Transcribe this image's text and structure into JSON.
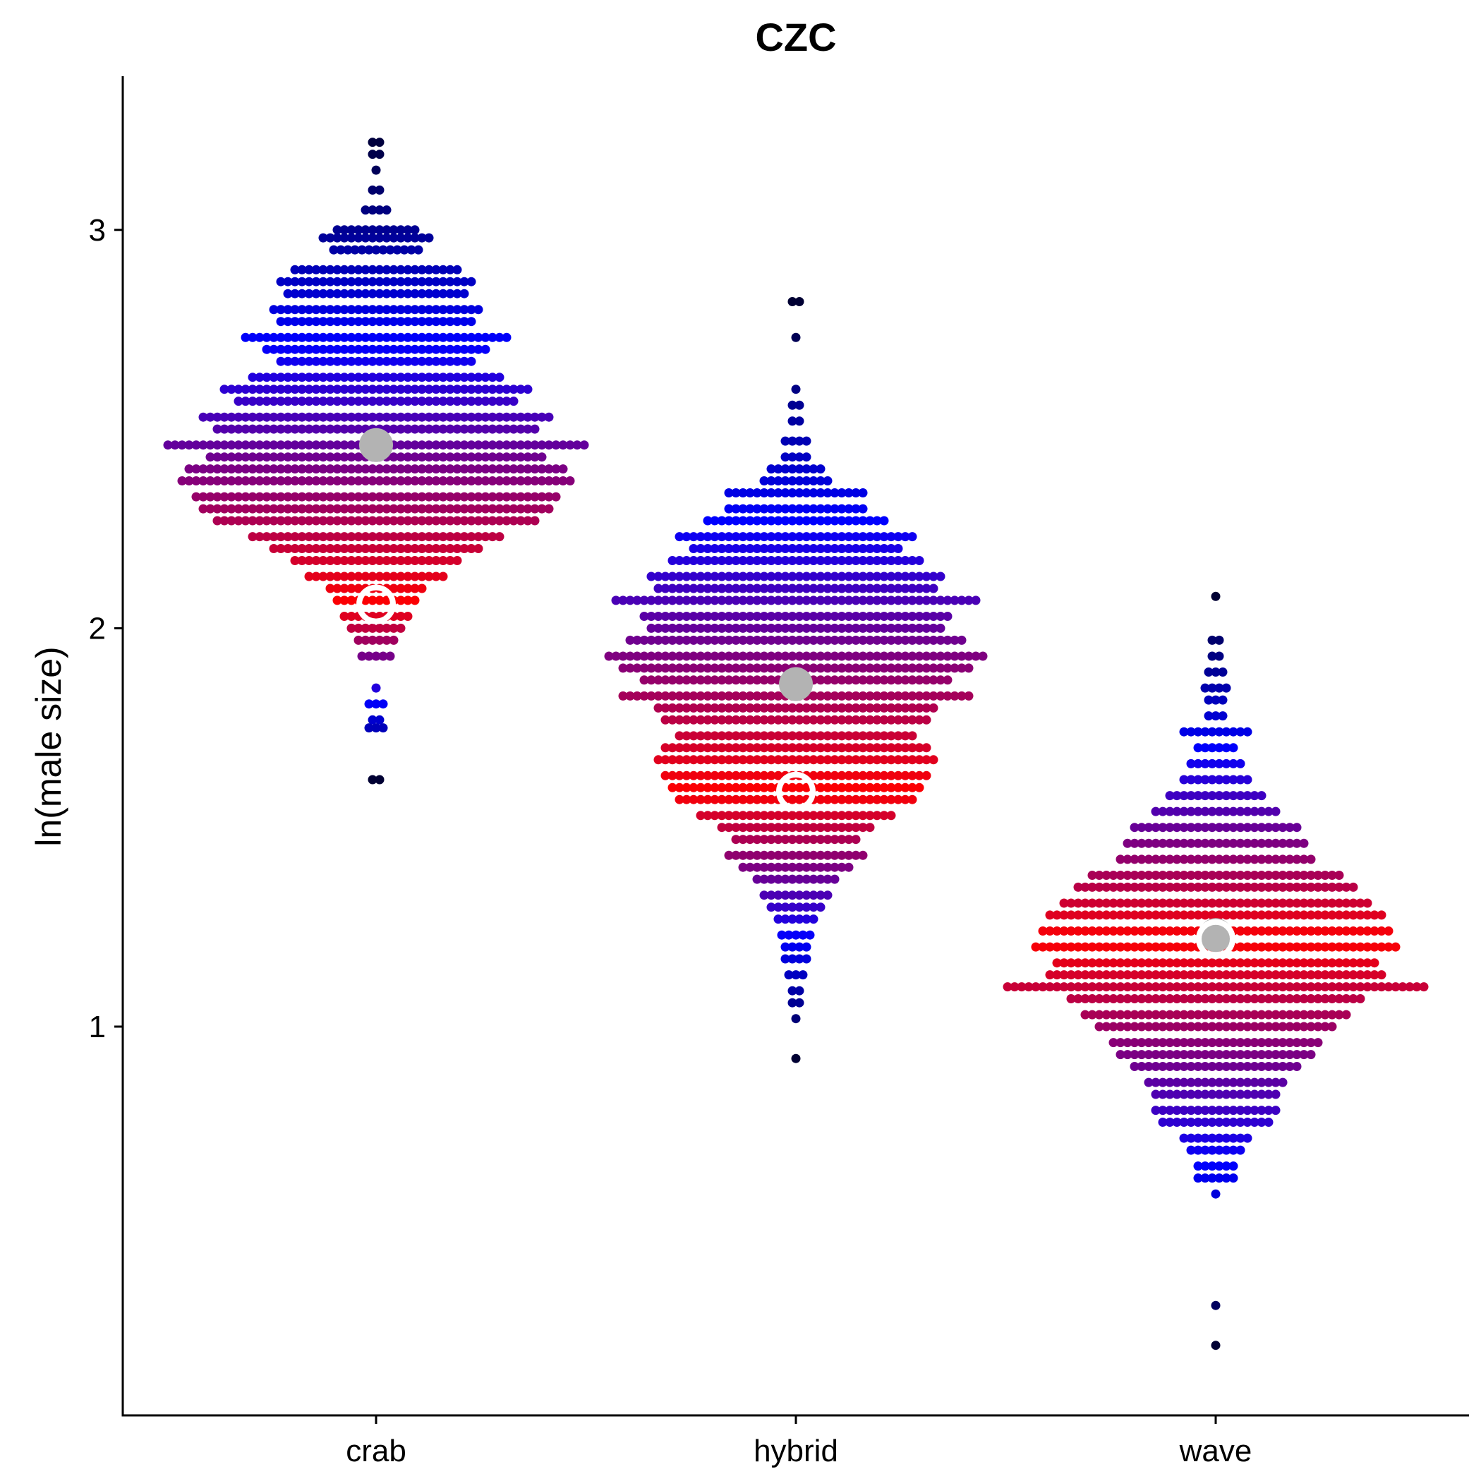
{
  "chart_data": {
    "type": "scatter",
    "subtype": "beeswarm",
    "title": "CZC",
    "xlabel": "",
    "ylabel": "ln(male size)",
    "categories": [
      "crab",
      "hybrid",
      "wave"
    ],
    "y_ticks": [
      1,
      2,
      3
    ],
    "ylim": [
      0.18,
      3.4
    ],
    "grid": false,
    "legend": "none",
    "colors": {
      "low_gradient": "#ff0000",
      "mid_gradient": "#0000ff",
      "high_gradient": "#000033",
      "mean_marker": "#b3b3b3",
      "ring_marker": "#ffffff",
      "axis": "#000000"
    },
    "distributions": [
      {
        "category": "crab",
        "mean": 2.46,
        "ring_center": 2.06,
        "min": 1.62,
        "max": 3.25,
        "outliers": [
          3.25,
          3.2,
          1.75,
          1.8,
          1.85,
          1.62
        ],
        "bins": [
          [
            3.22,
            2
          ],
          [
            3.19,
            2
          ],
          [
            3.15,
            1
          ],
          [
            3.1,
            2
          ],
          [
            3.05,
            4
          ],
          [
            3.0,
            12
          ],
          [
            2.98,
            16
          ],
          [
            2.95,
            13
          ],
          [
            2.9,
            24
          ],
          [
            2.87,
            28
          ],
          [
            2.84,
            26
          ],
          [
            2.8,
            30
          ],
          [
            2.77,
            28
          ],
          [
            2.73,
            38
          ],
          [
            2.7,
            32
          ],
          [
            2.67,
            28
          ],
          [
            2.63,
            36
          ],
          [
            2.6,
            44
          ],
          [
            2.57,
            40
          ],
          [
            2.53,
            50
          ],
          [
            2.5,
            46
          ],
          [
            2.46,
            60
          ],
          [
            2.43,
            48
          ],
          [
            2.4,
            54
          ],
          [
            2.37,
            56
          ],
          [
            2.33,
            52
          ],
          [
            2.3,
            50
          ],
          [
            2.27,
            46
          ],
          [
            2.23,
            36
          ],
          [
            2.2,
            30
          ],
          [
            2.17,
            24
          ],
          [
            2.13,
            20
          ],
          [
            2.1,
            14
          ],
          [
            2.07,
            12
          ],
          [
            2.03,
            10
          ],
          [
            2.0,
            8
          ],
          [
            1.97,
            6
          ],
          [
            1.93,
            5
          ],
          [
            1.85,
            1
          ],
          [
            1.81,
            3
          ],
          [
            1.77,
            2
          ],
          [
            1.75,
            3
          ],
          [
            1.62,
            2
          ]
        ]
      },
      {
        "category": "hybrid",
        "mean": 1.86,
        "ring_center": 1.59,
        "min": 0.92,
        "max": 2.82,
        "outliers": [
          2.82,
          2.73,
          1.02,
          0.92,
          1.06,
          1.09
        ],
        "bins": [
          [
            2.82,
            2
          ],
          [
            2.73,
            1
          ],
          [
            2.6,
            1
          ],
          [
            2.56,
            2
          ],
          [
            2.52,
            2
          ],
          [
            2.47,
            4
          ],
          [
            2.43,
            4
          ],
          [
            2.4,
            8
          ],
          [
            2.37,
            10
          ],
          [
            2.34,
            20
          ],
          [
            2.3,
            20
          ],
          [
            2.27,
            26
          ],
          [
            2.23,
            34
          ],
          [
            2.2,
            30
          ],
          [
            2.17,
            36
          ],
          [
            2.13,
            42
          ],
          [
            2.1,
            40
          ],
          [
            2.07,
            52
          ],
          [
            2.03,
            44
          ],
          [
            2.0,
            42
          ],
          [
            1.97,
            48
          ],
          [
            1.93,
            54
          ],
          [
            1.9,
            50
          ],
          [
            1.87,
            44
          ],
          [
            1.83,
            50
          ],
          [
            1.8,
            40
          ],
          [
            1.77,
            38
          ],
          [
            1.73,
            34
          ],
          [
            1.7,
            38
          ],
          [
            1.67,
            40
          ],
          [
            1.63,
            38
          ],
          [
            1.6,
            36
          ],
          [
            1.57,
            34
          ],
          [
            1.53,
            28
          ],
          [
            1.5,
            22
          ],
          [
            1.47,
            18
          ],
          [
            1.43,
            20
          ],
          [
            1.4,
            16
          ],
          [
            1.37,
            12
          ],
          [
            1.33,
            10
          ],
          [
            1.3,
            8
          ],
          [
            1.27,
            6
          ],
          [
            1.23,
            5
          ],
          [
            1.2,
            4
          ],
          [
            1.17,
            4
          ],
          [
            1.13,
            3
          ],
          [
            1.09,
            2
          ],
          [
            1.06,
            2
          ],
          [
            1.02,
            1
          ],
          [
            0.92,
            1
          ]
        ]
      },
      {
        "category": "wave",
        "mean": 1.23,
        "ring_center": 1.22,
        "min": 0.2,
        "max": 2.08,
        "outliers": [
          2.08,
          0.58,
          0.3,
          0.2
        ],
        "bins": [
          [
            2.08,
            1
          ],
          [
            1.97,
            2
          ],
          [
            1.93,
            2
          ],
          [
            1.89,
            3
          ],
          [
            1.85,
            4
          ],
          [
            1.82,
            3
          ],
          [
            1.78,
            3
          ],
          [
            1.74,
            10
          ],
          [
            1.7,
            6
          ],
          [
            1.66,
            8
          ],
          [
            1.62,
            10
          ],
          [
            1.58,
            14
          ],
          [
            1.54,
            18
          ],
          [
            1.5,
            24
          ],
          [
            1.46,
            26
          ],
          [
            1.42,
            28
          ],
          [
            1.38,
            36
          ],
          [
            1.35,
            40
          ],
          [
            1.31,
            44
          ],
          [
            1.28,
            48
          ],
          [
            1.24,
            50
          ],
          [
            1.2,
            52
          ],
          [
            1.16,
            46
          ],
          [
            1.13,
            48
          ],
          [
            1.1,
            60
          ],
          [
            1.07,
            42
          ],
          [
            1.03,
            38
          ],
          [
            1.0,
            34
          ],
          [
            0.96,
            30
          ],
          [
            0.93,
            28
          ],
          [
            0.9,
            24
          ],
          [
            0.86,
            20
          ],
          [
            0.83,
            18
          ],
          [
            0.79,
            18
          ],
          [
            0.76,
            16
          ],
          [
            0.72,
            10
          ],
          [
            0.69,
            8
          ],
          [
            0.65,
            6
          ],
          [
            0.62,
            6
          ],
          [
            0.58,
            1
          ],
          [
            0.3,
            1
          ],
          [
            0.2,
            1
          ]
        ]
      }
    ]
  }
}
